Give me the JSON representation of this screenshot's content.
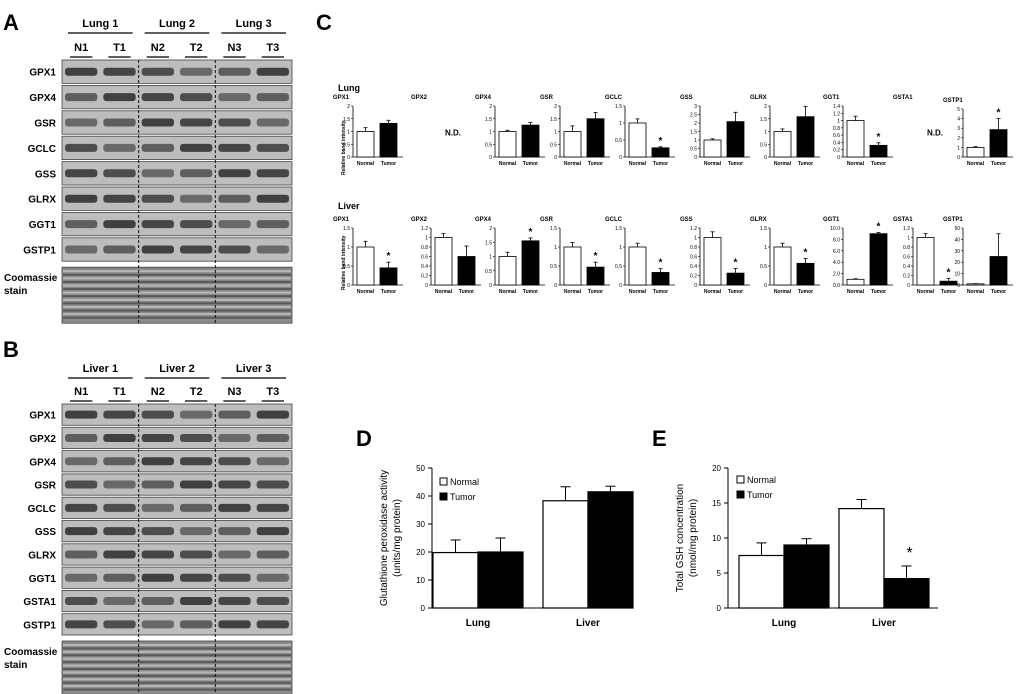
{
  "panels": {
    "A": "A",
    "B": "B",
    "C": "C",
    "D": "D",
    "E": "E"
  },
  "western_a": {
    "groups": [
      "Lung 1",
      "Lung 2",
      "Lung 3"
    ],
    "lanes": [
      "N1",
      "T1",
      "N2",
      "T2",
      "N3",
      "T3"
    ],
    "bands": [
      "GPX1",
      "GPX4",
      "GSR",
      "GCLC",
      "GSS",
      "GLRX",
      "GGT1",
      "GSTP1"
    ],
    "stain": [
      "Coomassie",
      "stain"
    ]
  },
  "western_b": {
    "groups": [
      "Liver 1",
      "Liver 2",
      "Liver 3"
    ],
    "lanes": [
      "N1",
      "T1",
      "N2",
      "T2",
      "N3",
      "T3"
    ],
    "bands": [
      "GPX1",
      "GPX2",
      "GPX4",
      "GSR",
      "GCLC",
      "GSS",
      "GLRX",
      "GGT1",
      "GSTA1",
      "GSTP1"
    ],
    "stain": [
      "Coomassie",
      "stain"
    ]
  },
  "panel_c": {
    "row_labels": [
      "Lung",
      "Liver"
    ],
    "ylabel": "Relative band intensity",
    "categories": [
      "Normal",
      "Tumor"
    ],
    "nd_label": "N.D.",
    "sig_marker": "*",
    "colors": {
      "normal": "#ffffff",
      "tumor": "#000000"
    },
    "lung": [
      {
        "name": "GPX1",
        "ticks": [
          "2",
          "1.5",
          "1",
          "0.5",
          "0"
        ],
        "ymax": 2,
        "values": [
          1.0,
          1.32
        ],
        "errors": [
          0.15,
          0.12
        ],
        "sig": false
      },
      {
        "name": "GPX2",
        "nd": true
      },
      {
        "name": "GPX4",
        "ticks": [
          "2",
          "1.5",
          "1",
          "0.5",
          "0"
        ],
        "ymax": 2,
        "values": [
          1.0,
          1.25
        ],
        "errors": [
          0.05,
          0.1
        ],
        "sig": false
      },
      {
        "name": "GSR",
        "ticks": [
          "2",
          "1.5",
          "1",
          "0.5",
          "0"
        ],
        "ymax": 2,
        "values": [
          1.0,
          1.5
        ],
        "errors": [
          0.22,
          0.25
        ],
        "sig": false
      },
      {
        "name": "GCLC",
        "ticks": [
          "1.5",
          "1",
          "0.5",
          "0"
        ],
        "ymax": 1.5,
        "values": [
          1.0,
          0.27
        ],
        "errors": [
          0.12,
          0.03
        ],
        "sig": true
      },
      {
        "name": "GSS",
        "ticks": [
          "3",
          "2.5",
          "2",
          "1.5",
          "1",
          "0.5",
          "0"
        ],
        "ymax": 3,
        "values": [
          1.0,
          2.08
        ],
        "errors": [
          0.07,
          0.55
        ],
        "sig": false
      },
      {
        "name": "GLRX",
        "ticks": [
          "2",
          "1.5",
          "1",
          "0.5",
          "0"
        ],
        "ymax": 2,
        "values": [
          1.0,
          1.58
        ],
        "errors": [
          0.1,
          0.4
        ],
        "sig": false
      },
      {
        "name": "GGT1",
        "ticks": [
          "1.4",
          "1.2",
          "1",
          "0.8",
          "0.6",
          "0.4",
          "0.2",
          "0"
        ],
        "ymax": 1.4,
        "values": [
          1.0,
          0.32
        ],
        "errors": [
          0.12,
          0.07
        ],
        "sig": true
      },
      {
        "name": "GSTA1",
        "nd": true
      },
      {
        "name": "GSTP1",
        "ticks": [
          "5",
          "4",
          "3",
          "2",
          "1",
          "0"
        ],
        "ymax": 5,
        "values": [
          1.0,
          2.85
        ],
        "errors": [
          0.08,
          1.15
        ],
        "sig": true
      }
    ],
    "liver": [
      {
        "name": "GPX1",
        "ticks": [
          "1.5",
          "1",
          "0.5",
          "0"
        ],
        "ymax": 1.5,
        "values": [
          1.0,
          0.45
        ],
        "errors": [
          0.15,
          0.15
        ],
        "sig": true
      },
      {
        "name": "GPX2",
        "ticks": [
          "1.2",
          "1",
          "0.8",
          "0.6",
          "0.4",
          "0.2",
          "0"
        ],
        "ymax": 1.2,
        "values": [
          1.0,
          0.6
        ],
        "errors": [
          0.08,
          0.22
        ],
        "sig": false
      },
      {
        "name": "GPX4",
        "ticks": [
          "2",
          "1.5",
          "1",
          "0.5",
          "0"
        ],
        "ymax": 2,
        "values": [
          1.0,
          1.55
        ],
        "errors": [
          0.15,
          0.1
        ],
        "sig": true
      },
      {
        "name": "GSR",
        "ticks": [
          "1.5",
          "1",
          "0.5",
          "0"
        ],
        "ymax": 1.5,
        "values": [
          1.0,
          0.47
        ],
        "errors": [
          0.12,
          0.13
        ],
        "sig": true
      },
      {
        "name": "GCLC",
        "ticks": [
          "1.5",
          "1",
          "0.5",
          "0"
        ],
        "ymax": 1.5,
        "values": [
          1.0,
          0.33
        ],
        "errors": [
          0.1,
          0.1
        ],
        "sig": true
      },
      {
        "name": "GSS",
        "ticks": [
          "1.2",
          "1",
          "0.8",
          "0.6",
          "0.4",
          "0.2",
          "0"
        ],
        "ymax": 1.2,
        "values": [
          1.0,
          0.25
        ],
        "errors": [
          0.12,
          0.1
        ],
        "sig": true
      },
      {
        "name": "GLRX",
        "ticks": [
          "1.5",
          "1",
          "0.5",
          "0"
        ],
        "ymax": 1.5,
        "values": [
          1.0,
          0.57
        ],
        "errors": [
          0.1,
          0.13
        ],
        "sig": true
      },
      {
        "name": "GGT1",
        "ticks": [
          "10.0",
          "8.0",
          "6.0",
          "4.0",
          "2.0",
          "0.0"
        ],
        "ymax": 10,
        "values": [
          1.0,
          9.0
        ],
        "errors": [
          0.1,
          0.2
        ],
        "sig": true
      },
      {
        "name": "GSTA1",
        "ticks": [
          "1.2",
          "1",
          "0.8",
          "0.6",
          "0.4",
          "0.2",
          "0"
        ],
        "ymax": 1.2,
        "values": [
          1.0,
          0.08
        ],
        "errors": [
          0.08,
          0.06
        ],
        "sig": true
      },
      {
        "name": "GSTP1",
        "ticks": [
          "50",
          "40",
          "30",
          "20",
          "10",
          "0"
        ],
        "ymax": 50,
        "values": [
          1.0,
          25.0
        ],
        "errors": [
          0.2,
          20.0
        ],
        "sig": false
      }
    ]
  },
  "chart_data": [
    {
      "type": "bar",
      "title": "",
      "categories": [
        "Lung",
        "Liver"
      ],
      "series": [
        {
          "name": "Normal",
          "values": [
            19.8,
            38.3
          ],
          "errors": [
            4.5,
            5.0
          ]
        },
        {
          "name": "Tumor",
          "values": [
            20.0,
            41.5
          ],
          "errors": [
            5.0,
            2.0
          ]
        }
      ],
      "xlabel": "",
      "ylabel": [
        "Glutathione peroxidase activity",
        "(units/mg protein)"
      ],
      "ylim": [
        0,
        50
      ],
      "yticks": [
        "0",
        "10",
        "20",
        "30",
        "40",
        "50"
      ],
      "legend": "top-left",
      "grid": false
    },
    {
      "type": "bar",
      "title": "",
      "categories": [
        "Lung",
        "Liver"
      ],
      "series": [
        {
          "name": "Normal",
          "values": [
            7.5,
            14.2
          ],
          "errors": [
            1.8,
            1.3
          ]
        },
        {
          "name": "Tumor",
          "values": [
            9.0,
            4.2
          ],
          "errors": [
            0.9,
            1.8
          ]
        }
      ],
      "xlabel": "",
      "ylabel": [
        "Total GSH concentration",
        "(nmol/mg protein)"
      ],
      "ylim": [
        0,
        20
      ],
      "yticks": [
        "0",
        "5",
        "10",
        "15",
        "20"
      ],
      "legend": "top-left",
      "grid": false,
      "sig_marker": "*"
    }
  ]
}
